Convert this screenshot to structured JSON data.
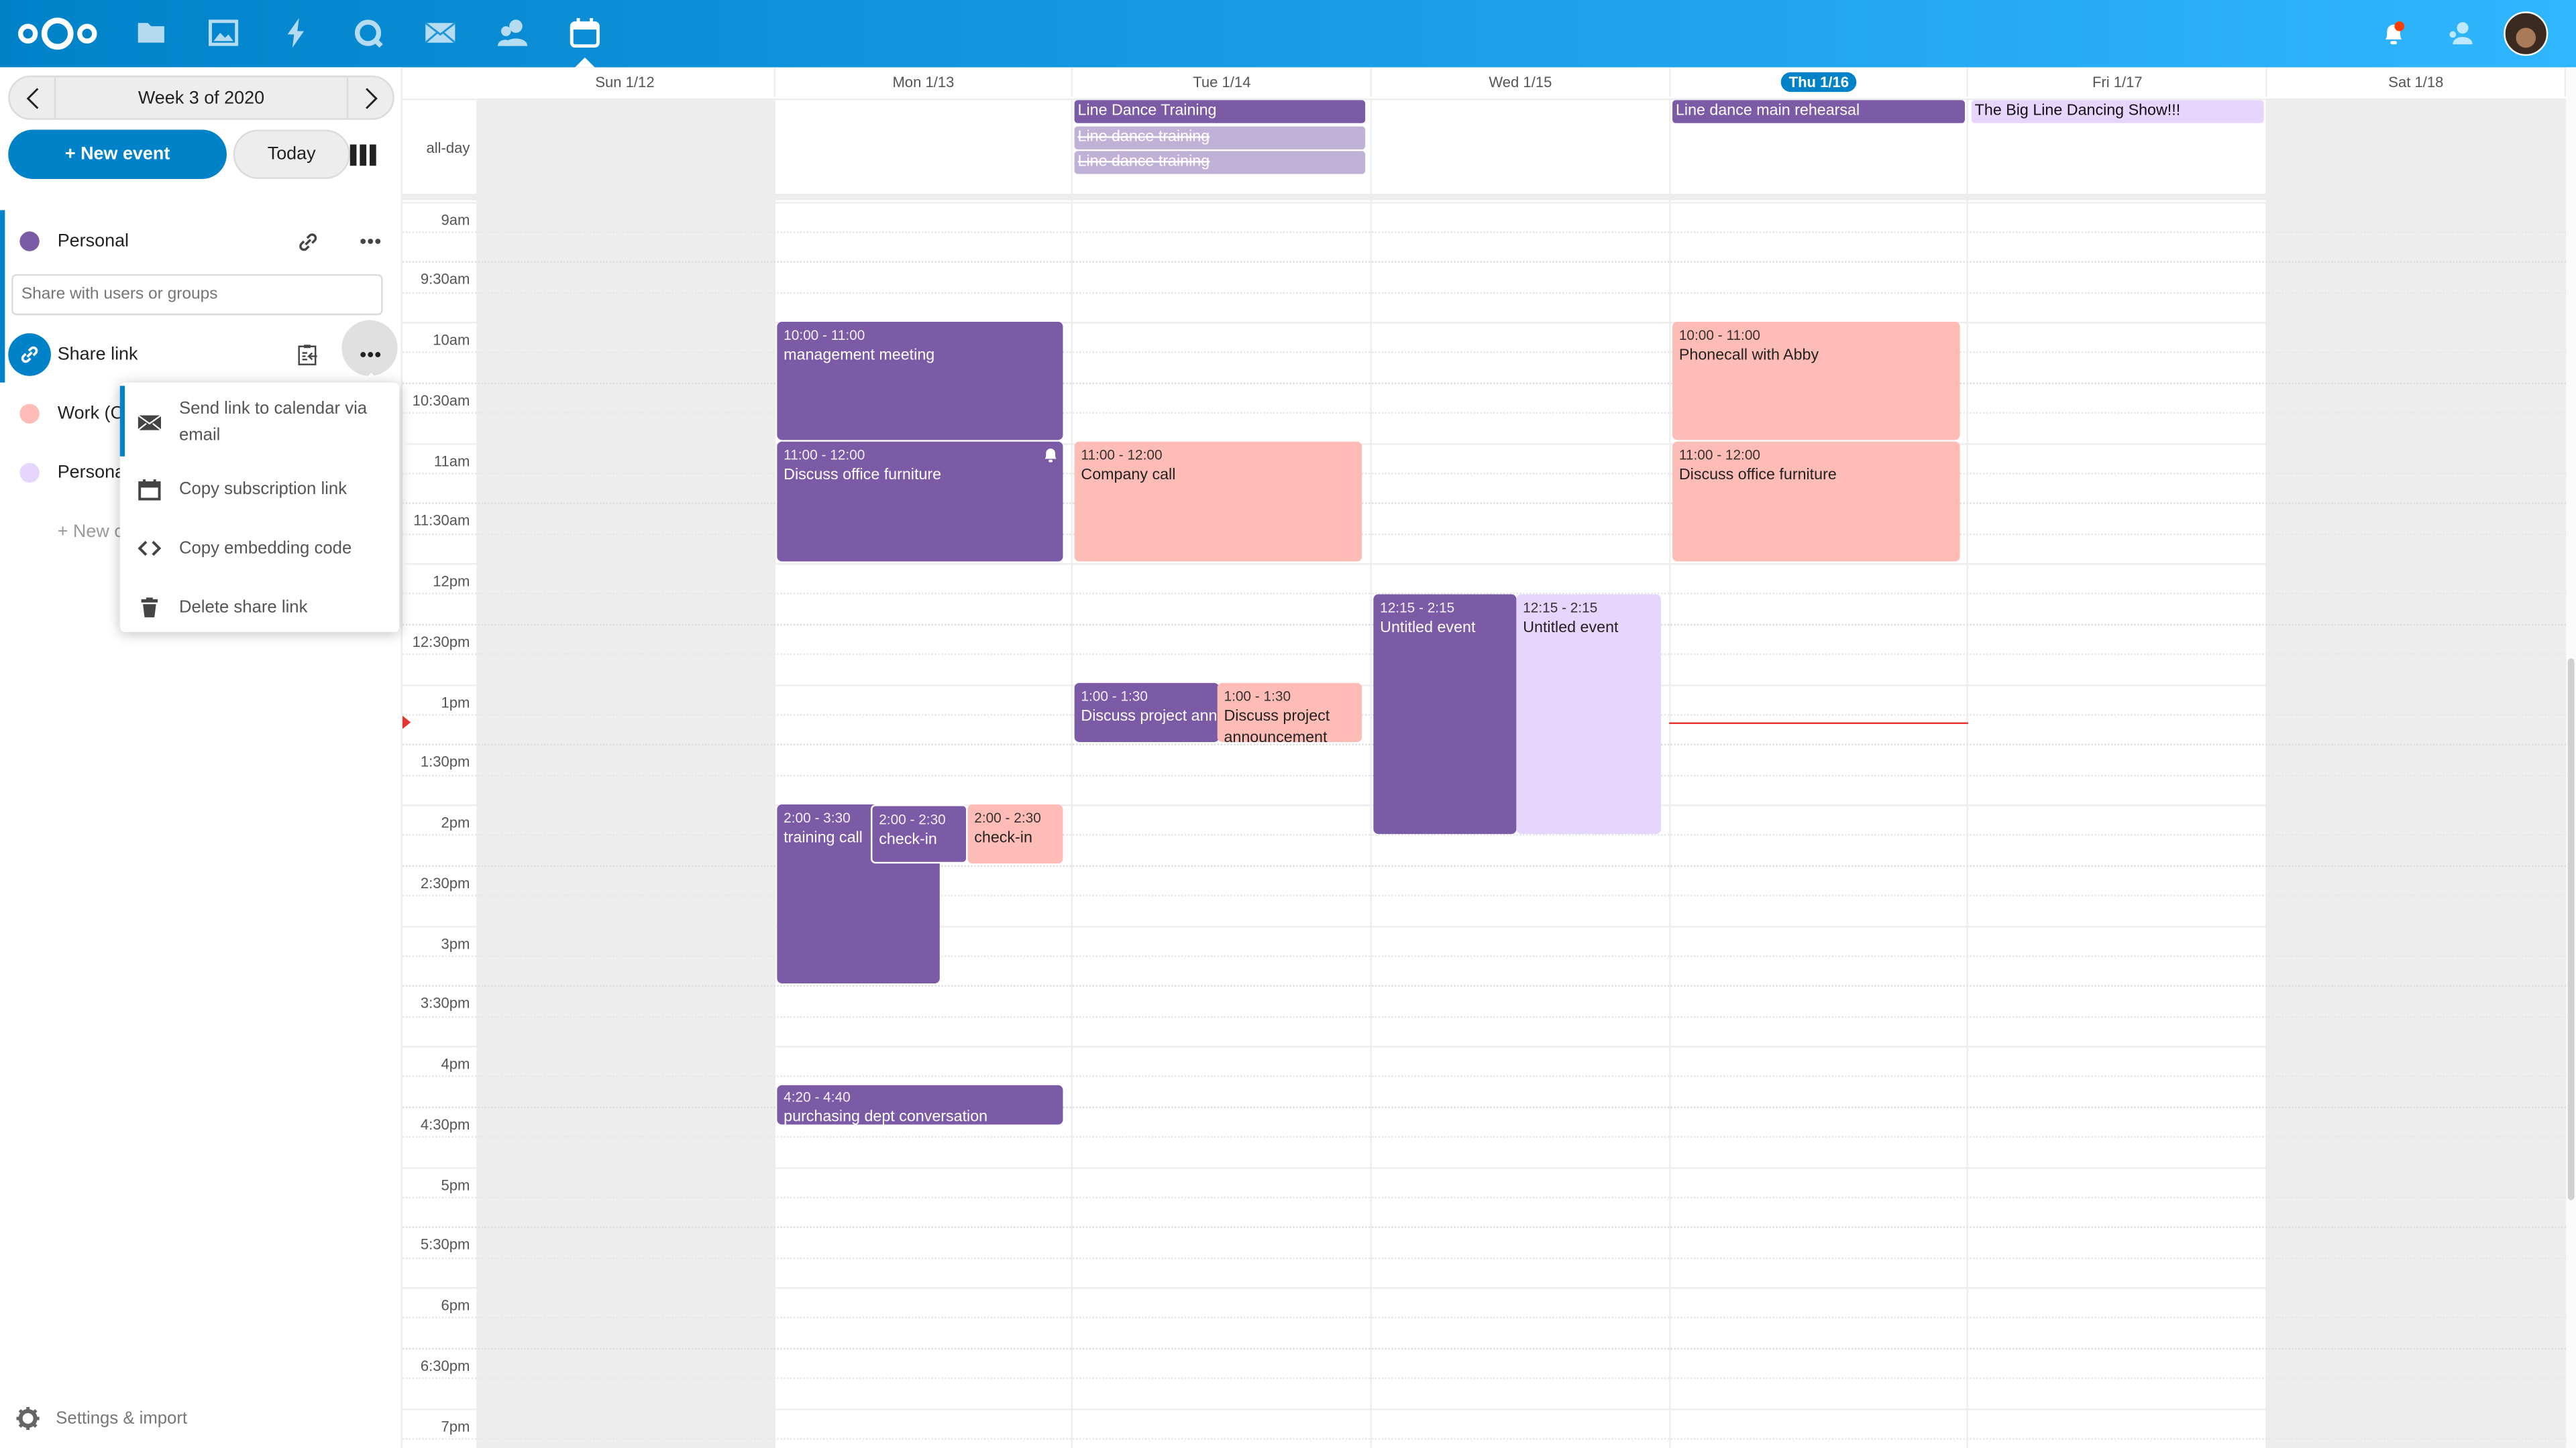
{
  "topbar": {
    "apps": [
      "files-icon",
      "photos-icon",
      "activity-icon",
      "talk-icon",
      "mail-icon",
      "contacts-icon",
      "calendar-icon"
    ],
    "active_app": "calendar-icon",
    "brand_color": "#0082c9",
    "notification_badge_color": "#ff3d00"
  },
  "sidebar": {
    "week_label": "Week 3 of 2020",
    "new_event_label": "+ New event",
    "today_label": "Today",
    "calendars": [
      {
        "name": "Personal",
        "color": "#7b5aa6"
      },
      {
        "name": "Work (C",
        "color": "#fdbdb6"
      },
      {
        "name": "Persona",
        "color": "#e6d5fd"
      }
    ],
    "share_placeholder": "Share with users or groups",
    "share_link_label": "Share link",
    "new_calendar_label": "+ New c",
    "menu": [
      {
        "label": "Send link to calendar via email",
        "icon": "mail-icon"
      },
      {
        "label": "Copy subscription link",
        "icon": "calendar-icon"
      },
      {
        "label": "Copy embedding code",
        "icon": "code-icon"
      },
      {
        "label": "Delete share link",
        "icon": "trash-icon"
      }
    ],
    "settings_label": "Settings & import"
  },
  "calendar": {
    "days": [
      "Sun 1/12",
      "Mon 1/13",
      "Tue 1/14",
      "Wed 1/15",
      "Thu 1/16",
      "Fri 1/17",
      "Sat 1/18"
    ],
    "today": "Thu 1/16",
    "allday_label": "all-day",
    "times": [
      "9am",
      "9:30am",
      "10am",
      "10:30am",
      "11am",
      "11:30am",
      "12pm",
      "12:30pm",
      "1pm",
      "1:30pm",
      "2pm",
      "2:30pm",
      "3pm",
      "3:30pm",
      "4pm",
      "4:30pm",
      "5pm",
      "5:30pm",
      "6pm",
      "6:30pm",
      "7pm"
    ],
    "allday_events": [
      {
        "day": "Tue 1/14",
        "title": "Line Dance Training",
        "cancelled": false
      },
      {
        "day": "Tue 1/14",
        "title": "Line dance training",
        "cancelled": true
      },
      {
        "day": "Tue 1/14",
        "title": "Line dance training",
        "cancelled": true
      },
      {
        "day": "Thu 1/16",
        "title": "Line dance main rehearsal",
        "cancelled": false
      },
      {
        "day": "Fri 1/17",
        "title": "The Big Line Dancing Show!!!",
        "cancelled": false
      }
    ],
    "events": [
      {
        "day": "Mon 1/13",
        "time": "10:00 - 11:00",
        "title": "management meeting"
      },
      {
        "day": "Mon 1/13",
        "time": "11:00 - 12:00",
        "title": "Discuss office furniture",
        "alarm": true
      },
      {
        "day": "Mon 1/13",
        "time": "2:00 - 3:30",
        "title": "training call"
      },
      {
        "day": "Mon 1/13",
        "time": "2:00 - 2:30",
        "title": "check-in"
      },
      {
        "day": "Mon 1/13",
        "time": "2:00 - 2:30",
        "title": "check-in"
      },
      {
        "day": "Mon 1/13",
        "time": "4:20 - 4:40",
        "title": "purchasing dept conversation"
      },
      {
        "day": "Tue 1/14",
        "time": "11:00 - 12:00",
        "title": "Company call"
      },
      {
        "day": "Tue 1/14",
        "time": "1:00 - 1:30",
        "title": "Discuss project announcement"
      },
      {
        "day": "Tue 1/14",
        "time": "1:00 - 1:30",
        "title": "Discuss project announcement"
      },
      {
        "day": "Wed 1/15",
        "time": "12:15 - 2:15",
        "title": "Untitled event"
      },
      {
        "day": "Wed 1/15",
        "time": "12:15 - 2:15",
        "title": "Untitled event"
      },
      {
        "day": "Thu 1/16",
        "time": "10:00 - 11:00",
        "title": "Phonecall with Abby"
      },
      {
        "day": "Thu 1/16",
        "time": "11:00 - 12:00",
        "title": "Discuss office furniture"
      }
    ],
    "colors": {
      "personal": "#7b5aa6",
      "work": "#fdbdb6",
      "personal2": "#e6d5fd",
      "cancelled": "#c0b1d6",
      "now_line": "#e9322d"
    }
  }
}
